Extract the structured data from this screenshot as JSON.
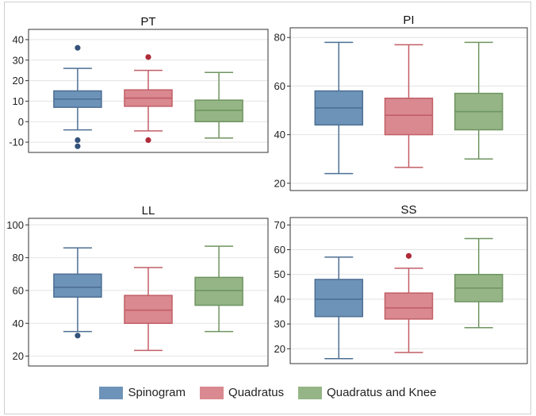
{
  "legend": {
    "items": [
      {
        "label": "Spinogram",
        "color": "#6e93b8"
      },
      {
        "label": "Quadratus",
        "color": "#d9898f"
      },
      {
        "label": "Quadratus and Knee",
        "color": "#95b586"
      }
    ]
  },
  "styles": {
    "series_fill": [
      "#6e93b8",
      "#d9898f",
      "#95b586"
    ],
    "series_stroke": [
      "#4d6f93",
      "#c25e67",
      "#6f9560"
    ],
    "outlier_color": [
      "#34527a",
      "#b02b3a",
      "#5c8a4c"
    ],
    "grid": true
  },
  "chart_data": [
    {
      "type": "box",
      "title": "PT",
      "series_names": [
        "Spinogram",
        "Quadratus",
        "Quadratus and Knee"
      ],
      "ylim": [
        -15,
        45
      ],
      "yticks": [
        -10,
        0,
        10,
        20,
        30,
        40
      ],
      "boxes": [
        {
          "min": -4,
          "q1": 7,
          "median": 11,
          "q3": 15,
          "max": 26,
          "outliers": [
            36,
            -9,
            -12
          ]
        },
        {
          "min": -4.5,
          "q1": 7.5,
          "median": 11.5,
          "q3": 15.5,
          "max": 25,
          "outliers": [
            31.5,
            -9
          ]
        },
        {
          "min": -8,
          "q1": 0,
          "median": 5.5,
          "q3": 10.5,
          "max": 24,
          "outliers": []
        }
      ]
    },
    {
      "type": "box",
      "title": "PI",
      "series_names": [
        "Spinogram",
        "Quadratus",
        "Quadratus and Knee"
      ],
      "ylim": [
        17,
        84
      ],
      "yticks": [
        20,
        40,
        60,
        80
      ],
      "boxes": [
        {
          "min": 24,
          "q1": 44,
          "median": 51,
          "q3": 58,
          "max": 78,
          "outliers": []
        },
        {
          "min": 26.5,
          "q1": 40,
          "median": 48,
          "q3": 55,
          "max": 77,
          "outliers": []
        },
        {
          "min": 30,
          "q1": 42,
          "median": 49.5,
          "q3": 57,
          "max": 78,
          "outliers": []
        }
      ]
    },
    {
      "type": "box",
      "title": "LL",
      "series_names": [
        "Spinogram",
        "Quadratus",
        "Quadratus and Knee"
      ],
      "ylim": [
        14,
        104
      ],
      "yticks": [
        20,
        40,
        60,
        80,
        100
      ],
      "boxes": [
        {
          "min": 35,
          "q1": 56,
          "median": 62,
          "q3": 70,
          "max": 86,
          "outliers": [
            32.5
          ]
        },
        {
          "min": 23.5,
          "q1": 40,
          "median": 48,
          "q3": 57,
          "max": 74,
          "outliers": []
        },
        {
          "min": 35,
          "q1": 51,
          "median": 60,
          "q3": 68,
          "max": 87,
          "outliers": []
        }
      ]
    },
    {
      "type": "box",
      "title": "SS",
      "series_names": [
        "Spinogram",
        "Quadratus",
        "Quadratus and Knee"
      ],
      "ylim": [
        14,
        73
      ],
      "yticks": [
        20,
        30,
        40,
        50,
        60,
        70
      ],
      "boxes": [
        {
          "min": 16,
          "q1": 33,
          "median": 40,
          "q3": 48,
          "max": 57,
          "outliers": []
        },
        {
          "min": 18.5,
          "q1": 32,
          "median": 36.5,
          "q3": 42.5,
          "max": 52.5,
          "outliers": [
            57.5
          ]
        },
        {
          "min": 28.5,
          "q1": 39,
          "median": 44.5,
          "q3": 50,
          "max": 64.5,
          "outliers": []
        }
      ]
    }
  ]
}
